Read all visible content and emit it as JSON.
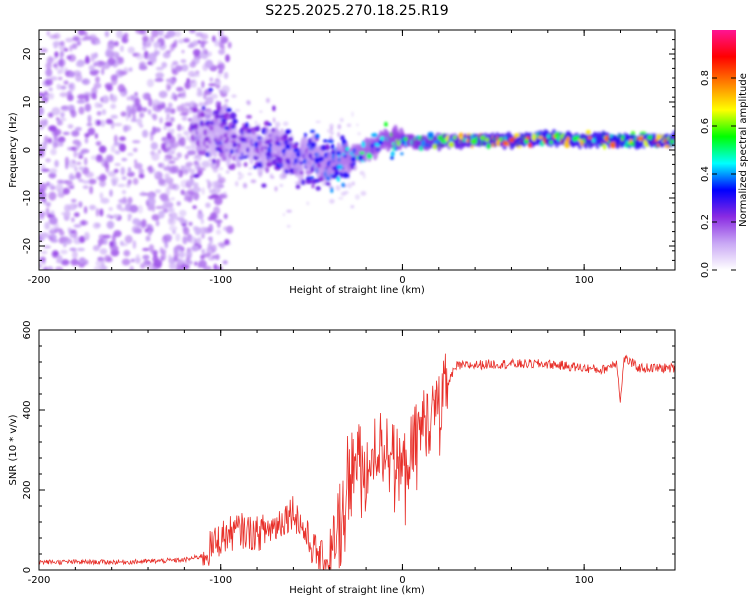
{
  "title": "S225.2025.270.18.25.R19",
  "chart_data": [
    {
      "type": "heatmap",
      "name": "spectrogram",
      "xlabel": "Height of straight line (km)",
      "ylabel": "Frequency (Hz)",
      "xlim": [
        -200,
        150
      ],
      "ylim": [
        -25,
        25
      ],
      "xticks": [
        -200,
        -100,
        0,
        100
      ],
      "yticks": [
        -20,
        -10,
        0,
        10,
        20
      ],
      "colorbar": {
        "label": "Normalized spectral amplitude",
        "range": [
          0.0,
          1.0
        ],
        "ticks": [
          "0.0",
          "0.2",
          "0.4",
          "0.6",
          "0.8"
        ],
        "colors": [
          "#ffffff",
          "#c9a8f5",
          "#8a2be2",
          "#0000ff",
          "#00ffff",
          "#00ff00",
          "#ffff00",
          "#ff8000",
          "#ff0000",
          "#ff1493"
        ]
      },
      "carrier_track": {
        "height_km": [
          -110,
          -100,
          -90,
          -80,
          -70,
          -60,
          -50,
          -40,
          -30,
          -20,
          -10,
          0,
          10,
          20,
          40,
          60,
          80,
          100,
          120,
          150
        ],
        "frequency_hz": [
          3,
          4,
          2,
          1,
          0,
          -1,
          -2,
          -3,
          -2,
          0,
          1.5,
          2,
          1.5,
          1.8,
          2,
          2,
          2.5,
          2,
          2,
          2
        ],
        "amplitude": [
          0.25,
          0.3,
          0.3,
          0.3,
          0.35,
          0.35,
          0.35,
          0.4,
          0.45,
          0.5,
          0.55,
          0.6,
          0.65,
          0.7,
          0.75,
          0.8,
          0.85,
          0.8,
          0.85,
          0.85
        ]
      },
      "noise_region_km": [
        -200,
        -110
      ]
    },
    {
      "type": "line",
      "name": "snr",
      "xlabel": "Height of straight line (km)",
      "ylabel": "SNR (10 * v/v)",
      "xlim": [
        -200,
        150
      ],
      "ylim": [
        0,
        600
      ],
      "xticks": [
        -200,
        -100,
        0,
        100
      ],
      "yticks": [
        0,
        200,
        400,
        600
      ],
      "color": "#e8302a",
      "series": [
        {
          "name": "SNR",
          "x": [
            -200,
            -150,
            -120,
            -110,
            -100,
            -90,
            -80,
            -70,
            -60,
            -50,
            -45,
            -40,
            -35,
            -30,
            -25,
            -20,
            -15,
            -10,
            -5,
            0,
            5,
            10,
            15,
            20,
            25,
            30,
            50,
            80,
            100,
            110,
            118,
            120,
            122,
            130,
            150
          ],
          "y": [
            20,
            20,
            25,
            35,
            80,
            100,
            90,
            110,
            150,
            60,
            30,
            20,
            100,
            240,
            260,
            220,
            300,
            320,
            280,
            250,
            300,
            360,
            380,
            400,
            470,
            510,
            515,
            515,
            505,
            500,
            520,
            420,
            530,
            505,
            505
          ]
        }
      ]
    }
  ]
}
